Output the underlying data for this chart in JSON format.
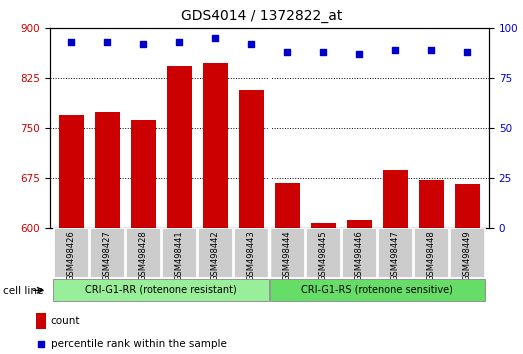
{
  "title": "GDS4014 / 1372822_at",
  "samples": [
    "GSM498426",
    "GSM498427",
    "GSM498428",
    "GSM498441",
    "GSM498442",
    "GSM498443",
    "GSM498444",
    "GSM498445",
    "GSM498446",
    "GSM498447",
    "GSM498448",
    "GSM498449"
  ],
  "counts": [
    770,
    775,
    763,
    843,
    848,
    808,
    668,
    608,
    612,
    687,
    673,
    666
  ],
  "percentile_ranks": [
    93,
    93,
    92,
    93,
    95,
    92,
    88,
    88,
    87,
    89,
    89,
    88
  ],
  "group1_label": "CRI-G1-RR (rotenone resistant)",
  "group2_label": "CRI-G1-RS (rotenone sensitive)",
  "group1_count": 6,
  "group2_count": 6,
  "ylim_left": [
    600,
    900
  ],
  "ylim_right": [
    0,
    100
  ],
  "yticks_left": [
    600,
    675,
    750,
    825,
    900
  ],
  "yticks_right": [
    0,
    25,
    50,
    75,
    100
  ],
  "bar_color": "#cc0000",
  "dot_color": "#0000cc",
  "group1_color": "#99ee99",
  "group2_color": "#66dd66",
  "tickbg_color": "#cccccc",
  "legend_count_color": "#cc0000",
  "legend_dot_color": "#0000cc",
  "gridline_ticks": [
    675,
    750,
    825
  ]
}
